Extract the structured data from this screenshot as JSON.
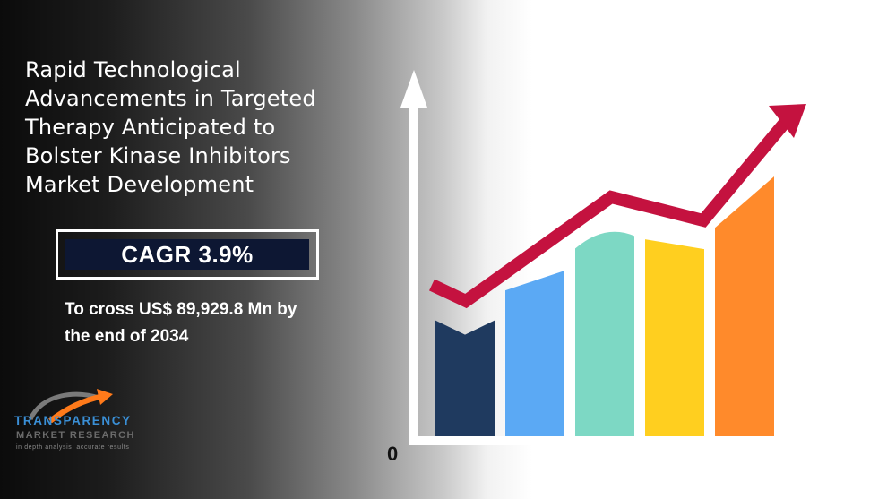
{
  "headline": {
    "lines": [
      "Rapid Technological",
      "Advancements in Targeted",
      "Therapy Anticipated to",
      "Bolster Kinase Inhibitors",
      "Market Development"
    ]
  },
  "cagr": {
    "label": "CAGR 3.9%"
  },
  "subtext": {
    "lines": [
      "To cross US$ 89,929.8 Mn by",
      "the end of 2034"
    ]
  },
  "logo": {
    "name": "TRANSPARENCY",
    "subname": "MARKET RESEARCH",
    "tagline": "in depth analysis, accurate results"
  },
  "chart": {
    "zero_label": "0",
    "bar_levels": [
      0.45,
      0.64,
      0.8,
      0.76,
      1.0
    ],
    "bar_colors": [
      "#1f3a5f",
      "#5ba9f4",
      "#7dd8c4",
      "#ffcf1f",
      "#ff8a2b"
    ],
    "trend_color": "#c4123f",
    "axis_color": "#ffffff"
  }
}
